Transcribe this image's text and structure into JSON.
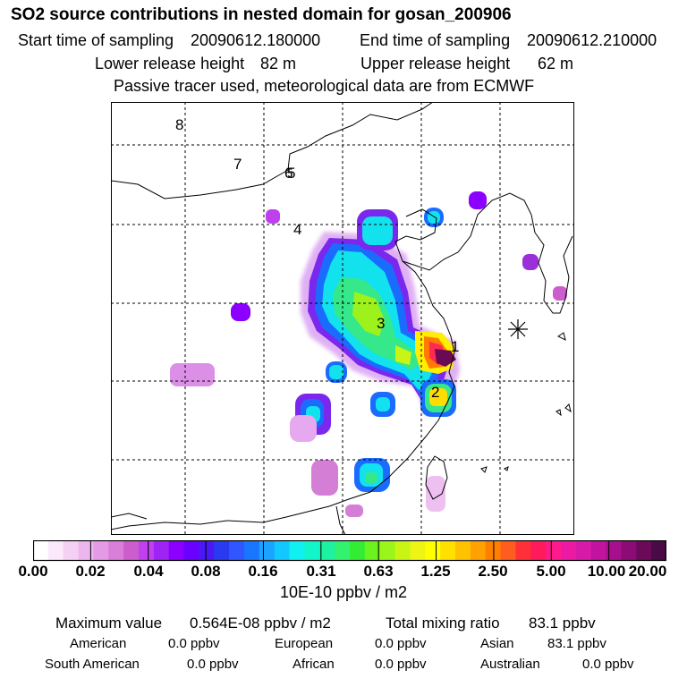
{
  "title": "SO2 source contributions in nested domain for gosan_200906",
  "header": {
    "start_label": "Start time of sampling",
    "start_value": "20090612.180000",
    "end_label": "End time of sampling",
    "end_value": "20090612.210000",
    "lower_label": "Lower release height",
    "lower_value": "82 m",
    "upper_label": "Upper release height",
    "upper_value": "62 m",
    "tracer_note": "Passive tracer used, meteorological data are from ECMWF"
  },
  "map": {
    "trajectory_labels": [
      "8",
      "7",
      "6",
      "5",
      "4",
      "3",
      "2",
      "1"
    ],
    "receptor_marker": "star-marker-icon"
  },
  "colorbar": {
    "ticks": [
      "0.00",
      "0.02",
      "0.04",
      "0.08",
      "0.16",
      "0.31",
      "0.63",
      "1.25",
      "2.50",
      "5.00",
      "10.00",
      "20.00"
    ],
    "colors": [
      "#ffffff",
      "#fbe8fb",
      "#f5d0f5",
      "#eeb6ee",
      "#e59ae5",
      "#d97ed9",
      "#cc5dcc",
      "#c040ed",
      "#a023f5",
      "#8b00ff",
      "#6a00ff",
      "#4a18f5",
      "#2a3af0",
      "#2f56ff",
      "#1976ff",
      "#1aa3ff",
      "#12c8ff",
      "#10f0f0",
      "#12f5c8",
      "#1cf2a2",
      "#33f270",
      "#35ec35",
      "#6cf21c",
      "#9cf51a",
      "#c8f514",
      "#eef514",
      "#ffff00",
      "#ffe000",
      "#ffc200",
      "#ffa100",
      "#ff8000",
      "#ff5c1f",
      "#ff3038",
      "#ff1a5c",
      "#ff1a8c",
      "#ec1aa2",
      "#d81aa8",
      "#c212a0",
      "#a80f8c",
      "#8c0c75",
      "#6c0a5a",
      "#4a0a46"
    ],
    "unit": "10E-10 ppbv / m2"
  },
  "stats": {
    "max_label": "Maximum value",
    "max_value": "0.564E-08 ppbv / m2",
    "total_label": "Total mixing ratio",
    "total_value": "83.1 ppbv",
    "regions": [
      {
        "name": "American",
        "value": "0.0 ppbv"
      },
      {
        "name": "European",
        "value": "0.0 ppbv"
      },
      {
        "name": "Asian",
        "value": "83.1 ppbv"
      },
      {
        "name": "South American",
        "value": "0.0 ppbv"
      },
      {
        "name": "African",
        "value": "0.0 ppbv"
      },
      {
        "name": "Australian",
        "value": "0.0 ppbv"
      }
    ]
  }
}
